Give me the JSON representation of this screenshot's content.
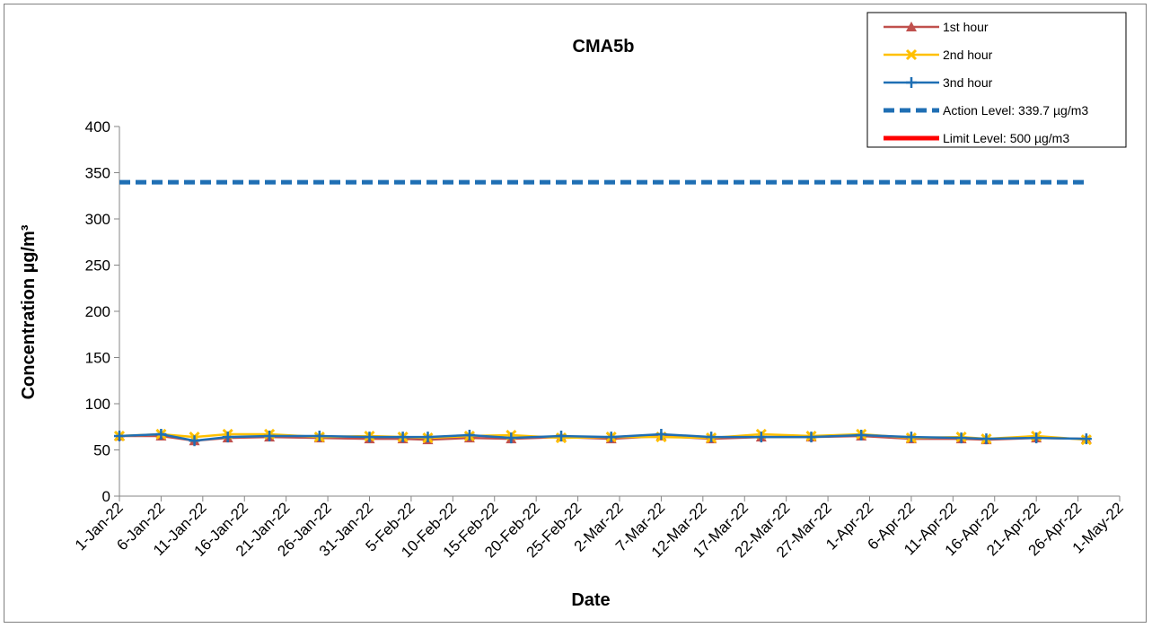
{
  "chart_data": {
    "type": "line",
    "title": "CMA5b",
    "xlabel": "Date",
    "ylabel": "Concentration µg/m³",
    "ylim": [
      0,
      400
    ],
    "yticks": [
      0,
      50,
      100,
      150,
      200,
      250,
      300,
      350,
      400
    ],
    "xlim": [
      "1-Jan-22",
      "1-May-22"
    ],
    "xticks": [
      "1-Jan-22",
      "6-Jan-22",
      "11-Jan-22",
      "16-Jan-22",
      "21-Jan-22",
      "26-Jan-22",
      "31-Jan-22",
      "5-Feb-22",
      "10-Feb-22",
      "15-Feb-22",
      "20-Feb-22",
      "25-Feb-22",
      "2-Mar-22",
      "7-Mar-22",
      "12-Mar-22",
      "17-Mar-22",
      "22-Mar-22",
      "27-Mar-22",
      "1-Apr-22",
      "6-Apr-22",
      "11-Apr-22",
      "16-Apr-22",
      "21-Apr-22",
      "26-Apr-22",
      "1-May-22"
    ],
    "x": [
      "1-Jan-22",
      "6-Jan-22",
      "10-Jan-22",
      "14-Jan-22",
      "19-Jan-22",
      "25-Jan-22",
      "31-Jan-22",
      "4-Feb-22",
      "7-Feb-22",
      "12-Feb-22",
      "17-Feb-22",
      "23-Feb-22",
      "1-Mar-22",
      "7-Mar-22",
      "13-Mar-22",
      "19-Mar-22",
      "25-Mar-22",
      "31-Mar-22",
      "6-Apr-22",
      "12-Apr-22",
      "15-Apr-22",
      "21-Apr-22",
      "27-Apr-22"
    ],
    "series": [
      {
        "name": "1st hour",
        "color": "#c0504d",
        "marker": "triangle",
        "values": [
          65,
          65,
          60,
          63,
          64,
          63,
          62,
          62,
          61,
          63,
          62,
          64,
          62,
          65,
          62,
          64,
          64,
          65,
          62,
          62,
          61,
          63,
          62
        ]
      },
      {
        "name": "2nd hour",
        "color": "#ffc000",
        "marker": "x",
        "values": [
          65,
          67,
          64,
          67,
          67,
          64,
          65,
          64,
          63,
          65,
          66,
          63,
          64,
          64,
          63,
          67,
          65,
          67,
          63,
          64,
          62,
          65,
          61
        ]
      },
      {
        "name": "3nd hour",
        "color": "#1f6fb4",
        "marker": "plus",
        "values": [
          65,
          67,
          60,
          64,
          65,
          65,
          64,
          64,
          64,
          66,
          63,
          65,
          64,
          67,
          64,
          64,
          64,
          66,
          64,
          63,
          62,
          63,
          62
        ]
      }
    ],
    "reference_lines": [
      {
        "name": "Action Level: 339.7 µg/m3",
        "value": 339.7,
        "color": "#1f6fb4",
        "style": "dashed"
      },
      {
        "name": "Limit Level: 500 µg/m3",
        "value": 500,
        "color": "#ff0000",
        "style": "solid"
      }
    ],
    "grid": false,
    "legend_position": "top-right"
  }
}
